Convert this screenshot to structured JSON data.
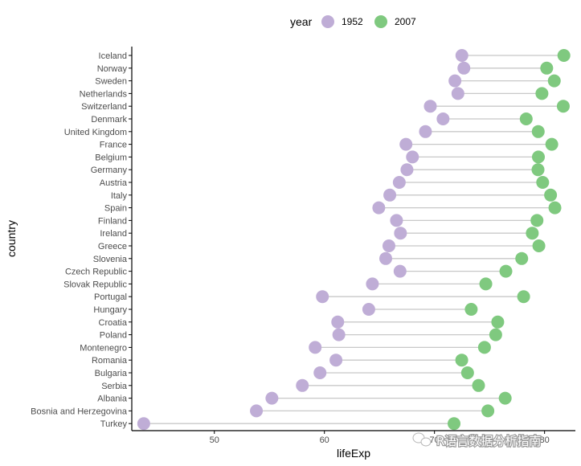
{
  "chart_data": {
    "type": "scatter",
    "subtype": "dumbbell",
    "xlabel": "lifeExp",
    "ylabel": "country",
    "xlim": [
      42.5,
      82.8
    ],
    "xticks": [
      50,
      60,
      70,
      80
    ],
    "grid": false,
    "legend": {
      "title": "year",
      "position": "top",
      "entries": [
        "1952",
        "2007"
      ]
    },
    "colors": {
      "1952": "#bfadd6",
      "2007": "#7fc97f",
      "segment": "#c8c8c8",
      "axis": "#000000"
    },
    "categories": [
      "Iceland",
      "Norway",
      "Sweden",
      "Netherlands",
      "Switzerland",
      "Denmark",
      "United Kingdom",
      "France",
      "Belgium",
      "Germany",
      "Austria",
      "Italy",
      "Spain",
      "Finland",
      "Ireland",
      "Greece",
      "Slovenia",
      "Czech Republic",
      "Slovak Republic",
      "Portugal",
      "Hungary",
      "Croatia",
      "Poland",
      "Montenegro",
      "Romania",
      "Bulgaria",
      "Serbia",
      "Albania",
      "Bosnia and Herzegovina",
      "Turkey"
    ],
    "series": [
      {
        "name": "1952",
        "values": [
          72.49,
          72.67,
          71.86,
          72.13,
          69.62,
          70.78,
          69.18,
          67.41,
          68.0,
          67.5,
          66.8,
          65.94,
          64.94,
          66.55,
          66.91,
          65.86,
          65.57,
          66.87,
          64.36,
          59.82,
          64.03,
          61.21,
          61.31,
          59.16,
          61.05,
          59.6,
          57.996,
          55.23,
          53.82,
          43.585
        ]
      },
      {
        "name": "2007",
        "values": [
          81.757,
          80.196,
          80.884,
          79.762,
          81.701,
          78.332,
          79.425,
          80.657,
          79.441,
          79.406,
          79.829,
          80.546,
          80.941,
          79.313,
          78.885,
          79.483,
          77.926,
          76.486,
          74.663,
          78.098,
          73.338,
          75.748,
          75.563,
          74.543,
          72.476,
          73.005,
          74.002,
          76.423,
          74.852,
          71.777
        ]
      }
    ]
  },
  "watermark": {
    "text": "R语言数据分析指南",
    "icon": "wechat-icon"
  }
}
